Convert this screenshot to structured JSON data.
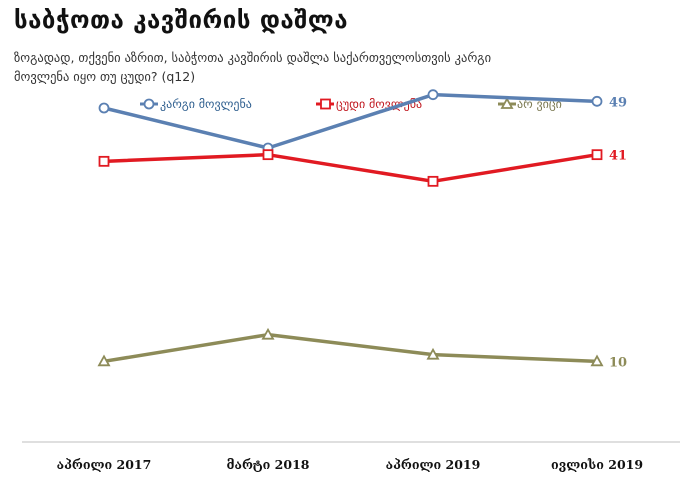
{
  "title": "საბჭოთა კავშირის დაშლა",
  "subtitle": {
    "line1": "ზოგადად, თქვენი აზრით, საბჭოთა კავშირის დაშლა საქართველოსთვის კარგი",
    "line2": "მოვლენა იყო თუ ცუდი?  (q12)"
  },
  "chart_data": {
    "type": "line",
    "categories": [
      "აპრილი 2017",
      "მარტი 2018",
      "აპრილი 2019",
      "ივლისი 2019"
    ],
    "series": [
      {
        "name": "კარგი მოვლენა",
        "values": [
          48,
          42,
          50,
          49
        ],
        "color": "#5B80B2",
        "marker": "circle",
        "end_label": "49"
      },
      {
        "name": "ცუდი მოვლენა",
        "values": [
          40,
          41,
          37,
          41
        ],
        "color": "#E11A22",
        "marker": "square",
        "end_label": "41"
      },
      {
        "name": "არ ვიცი",
        "values": [
          10,
          14,
          11,
          10
        ],
        "color": "#8D8B58",
        "marker": "triangle",
        "end_label": "10"
      }
    ],
    "ylim": [
      0,
      60
    ],
    "grid": false,
    "legend_position": "top"
  }
}
